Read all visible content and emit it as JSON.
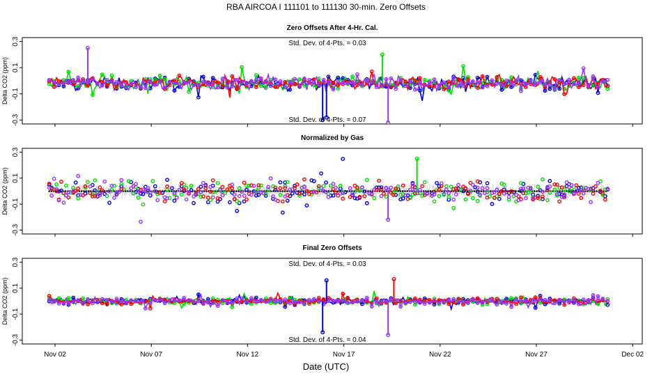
{
  "title": "RBA   AIRCOA I   111101 to 111130   30-min. Zero Offsets",
  "xlabel": "Date (UTC)",
  "x_tick_labels": [
    "Nov 02",
    "Nov 07",
    "Nov 12",
    "Nov 17",
    "Nov 22",
    "Nov 27",
    "Dec 02"
  ],
  "series_colors": [
    "#0000dd",
    "#00dd00",
    "#ff0000",
    "#9933ff"
  ],
  "chart_data": [
    {
      "type": "scatter",
      "title": "Zero Offsets After 4-Hr. Cal.",
      "ylabel": "Delta CO2 (ppm)",
      "ylim": [
        -0.33,
        0.33
      ],
      "y_ticks": [
        0.3,
        0.1,
        -0.1,
        -0.3
      ],
      "x_ticks": [
        "Nov 02",
        "Nov 07",
        "Nov 12",
        "Nov 17",
        "Nov 22",
        "Nov 27",
        "Dec 02"
      ],
      "xrange_days": [
        1.0,
        31.0
      ],
      "annotations": [
        "Std. Dev. of 4-Pts. = 0.03",
        "Std. Dev. of 4-Pts. = 0.07"
      ],
      "series": [
        {
          "color": "#0000dd",
          "spread": 0.05
        },
        {
          "color": "#00dd00",
          "spread": 0.05
        },
        {
          "color": "#ff0000",
          "spread": 0.05
        },
        {
          "color": "#9933ff",
          "spread": 0.05
        }
      ],
      "offset": -0.02,
      "spikes": [
        {
          "day": 15.9,
          "value": -0.3,
          "color": "#0000dd"
        },
        {
          "day": 16.1,
          "value": -0.28,
          "color": "#0000dd"
        },
        {
          "day": 19.3,
          "value": -0.32,
          "color": "#9933ff"
        },
        {
          "day": 19.0,
          "value": 0.2,
          "color": "#00dd00"
        },
        {
          "day": 3.7,
          "value": 0.25,
          "color": "#9933ff"
        }
      ]
    },
    {
      "type": "scatter",
      "title": "Normalized by Gas",
      "ylabel": "Delta CO2 (ppm)",
      "ylim": [
        -0.33,
        0.33
      ],
      "y_ticks": [
        0.3,
        0.1,
        -0.1,
        -0.3
      ],
      "x_ticks": [
        "Nov 02",
        "Nov 07",
        "Nov 12",
        "Nov 17",
        "Nov 22",
        "Nov 27",
        "Dec 02"
      ],
      "xrange_days": [
        1.0,
        31.0
      ],
      "annotations": [],
      "series": [
        {
          "color": "#0000dd",
          "spread": 0.08
        },
        {
          "color": "#00dd00",
          "spread": 0.08
        },
        {
          "color": "#ff0000",
          "spread": 0.08
        },
        {
          "color": "#9933ff",
          "spread": 0.08
        }
      ],
      "offset": 0.0,
      "spikes": [
        {
          "day": 19.3,
          "value": -0.22,
          "color": "#9933ff"
        },
        {
          "day": 20.8,
          "value": 0.25,
          "color": "#00dd00"
        }
      ]
    },
    {
      "type": "scatter",
      "title": "Final Zero Offsets",
      "ylabel": "Delta CO2 (ppm)",
      "ylim": [
        -0.33,
        0.33
      ],
      "y_ticks": [
        0.3,
        0.1,
        -0.1,
        -0.3
      ],
      "x_ticks": [
        "Nov 02",
        "Nov 07",
        "Nov 12",
        "Nov 17",
        "Nov 22",
        "Nov 27",
        "Dec 02"
      ],
      "xrange_days": [
        1.0,
        31.0
      ],
      "annotations": [
        "Std. Dev. of 4-Pts. = 0.03",
        "Std. Dev. of 4-Pts. = 0.04"
      ],
      "series": [
        {
          "color": "#0000dd",
          "spread": 0.025
        },
        {
          "color": "#00dd00",
          "spread": 0.025
        },
        {
          "color": "#ff0000",
          "spread": 0.025
        },
        {
          "color": "#9933ff",
          "spread": 0.025
        }
      ],
      "offset": 0.0,
      "spikes": [
        {
          "day": 15.9,
          "value": -0.24,
          "color": "#0000dd"
        },
        {
          "day": 16.1,
          "value": 0.16,
          "color": "#0000dd"
        },
        {
          "day": 19.3,
          "value": -0.26,
          "color": "#9933ff"
        },
        {
          "day": 19.6,
          "value": 0.17,
          "color": "#ff0000"
        }
      ]
    }
  ]
}
